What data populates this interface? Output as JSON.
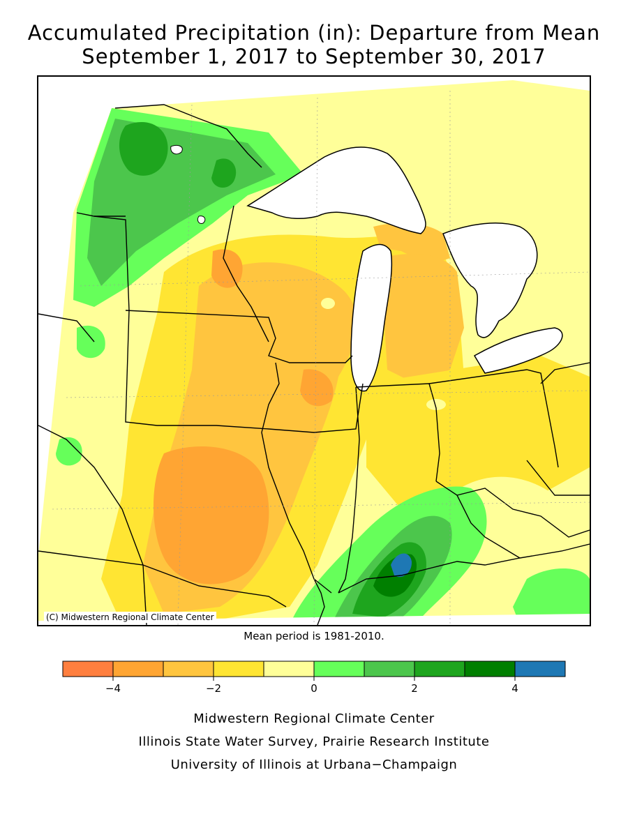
{
  "title_line1": "Accumulated Precipitation (in): Departure from Mean",
  "title_line2": "September 1, 2017 to September 30, 2017",
  "map": {
    "copyright": "(C) Midwestern Regional Climate Center",
    "state_line_color": "#000000",
    "lake_color": "#ffffff"
  },
  "mean_period_note": "Mean period is 1981-2010.",
  "legend": {
    "bins": [
      {
        "from": -5,
        "to": -4,
        "color": "#ff7f3f"
      },
      {
        "from": -4,
        "to": -3,
        "color": "#ffa533"
      },
      {
        "from": -3,
        "to": -2,
        "color": "#ffc53f"
      },
      {
        "from": -2,
        "to": -1,
        "color": "#ffe533"
      },
      {
        "from": -1,
        "to": 0,
        "color": "#ffff99"
      },
      {
        "from": 0,
        "to": 1,
        "color": "#66ff5a"
      },
      {
        "from": 1,
        "to": 2,
        "color": "#4cc64c"
      },
      {
        "from": 2,
        "to": 3,
        "color": "#1ea51e"
      },
      {
        "from": 3,
        "to": 4,
        "color": "#007f00"
      },
      {
        "from": 4,
        "to": 5,
        "color": "#1e78b4"
      }
    ],
    "tick_labels": [
      "−4",
      "−2",
      "0",
      "2",
      "4"
    ]
  },
  "credits": [
    "Midwestern Regional Climate Center",
    "Illinois State Water Survey, Prairie Research Institute",
    "University of Illinois at Urbana−Champaign"
  ]
}
